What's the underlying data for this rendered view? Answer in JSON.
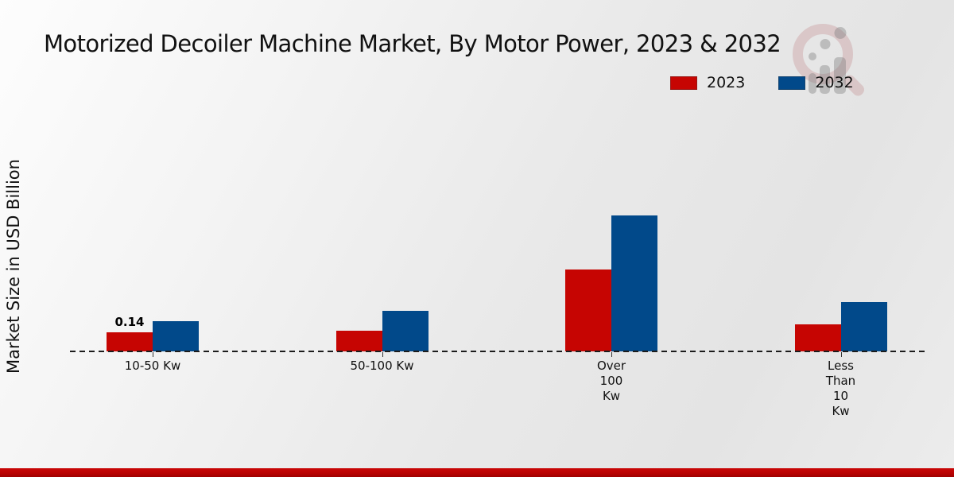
{
  "title": "Motorized Decoiler Machine Market, By Motor Power, 2023 & 2032",
  "ylabel": "Market Size in USD Billion",
  "legend": {
    "items": [
      {
        "label": "2023",
        "color": "#c60502"
      },
      {
        "label": "2032",
        "color": "#01498a"
      }
    ]
  },
  "watermark": {
    "name": "market-research-magnifier-logo"
  },
  "colors": {
    "series_2023": "#c60502",
    "series_2032": "#01498a",
    "footer_bar": "#b80202",
    "baseline": "#1c1c1c"
  },
  "chart_data": {
    "type": "bar",
    "title": "Motorized Decoiler Machine Market, By Motor Power, 2023 & 2032",
    "xlabel": "",
    "ylabel": "Market Size in USD Billion",
    "categories": [
      "10-50 Kw",
      "50-100 Kw",
      "Over 100 Kw",
      "Less Than 10 Kw"
    ],
    "category_display_lines": [
      [
        "10-50 Kw"
      ],
      [
        "50-100 Kw"
      ],
      [
        "Over",
        "100",
        "Kw"
      ],
      [
        "Less",
        "Than",
        "10",
        "Kw"
      ]
    ],
    "series": [
      {
        "name": "2023",
        "color": "#c60502",
        "values": [
          0.14,
          0.15,
          0.6,
          0.2
        ]
      },
      {
        "name": "2032",
        "color": "#01498a",
        "values": [
          0.22,
          0.3,
          1.0,
          0.36
        ]
      }
    ],
    "annotations": [
      {
        "series": "2023",
        "category_index": 0,
        "text": "0.14"
      }
    ],
    "ylim": [
      0,
      1.2
    ],
    "y_axis_ticks_visible": false,
    "grid": false,
    "baseline_style": "dashed",
    "legend_position": "top-right",
    "unit": "USD Billion"
  }
}
